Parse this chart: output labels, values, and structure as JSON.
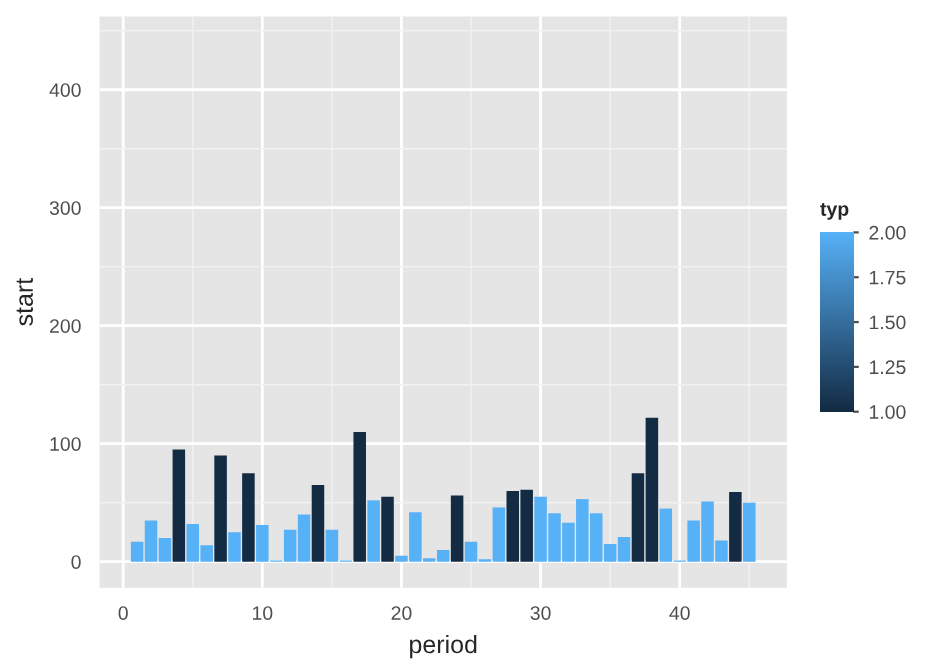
{
  "chart_data": {
    "type": "bar",
    "xlabel": "period",
    "ylabel": "start",
    "clabel": "typ",
    "x": [
      1,
      2,
      3,
      4,
      5,
      6,
      7,
      8,
      9,
      10,
      11,
      12,
      13,
      14,
      15,
      16,
      17,
      18,
      19,
      20,
      21,
      22,
      23,
      24,
      25,
      26,
      27,
      28,
      29,
      30,
      31,
      32,
      33,
      34,
      35,
      36,
      37,
      38,
      39,
      40,
      41,
      42,
      43,
      44,
      45
    ],
    "values": [
      17,
      35,
      20,
      95,
      32,
      14,
      90,
      25,
      75,
      31,
      1,
      27,
      40,
      65,
      27,
      1,
      110,
      52,
      55,
      5,
      42,
      3,
      10,
      56,
      17,
      2,
      46,
      60,
      61,
      55,
      41,
      33,
      53,
      41,
      15,
      21,
      75,
      122,
      45,
      1,
      35,
      51,
      18,
      59,
      50
    ],
    "cvalues": [
      2,
      2,
      2,
      1,
      2,
      2,
      1,
      2,
      1,
      2,
      2,
      2,
      2,
      1,
      2,
      2,
      1,
      2,
      1,
      2,
      2,
      2,
      2,
      1,
      2,
      2,
      2,
      1,
      1,
      2,
      2,
      2,
      2,
      2,
      2,
      2,
      1,
      1,
      2,
      2,
      2,
      2,
      2,
      1,
      2
    ],
    "clim": [
      1,
      2
    ],
    "cticks": [
      {
        "value": 1,
        "label": "1.00"
      },
      {
        "value": 1.25,
        "label": "1.25"
      },
      {
        "value": 1.5,
        "label": "1.50"
      },
      {
        "value": 1.75,
        "label": "1.75"
      },
      {
        "value": 2,
        "label": "2.00"
      }
    ],
    "xlim": [
      -1.7,
      47.7
    ],
    "xticks": [
      0,
      10,
      20,
      30,
      40
    ],
    "ylim": [
      -22,
      462
    ],
    "yticks": [
      0,
      100,
      200,
      300,
      400
    ],
    "grid": true
  }
}
